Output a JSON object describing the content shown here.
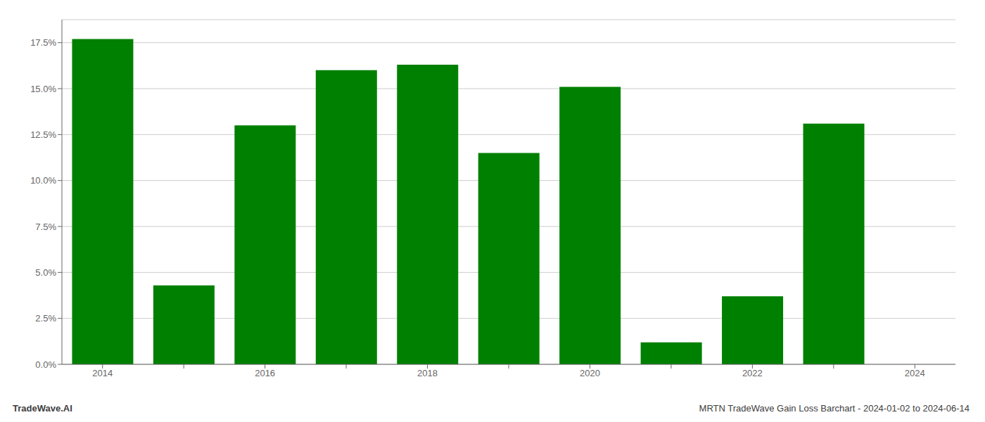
{
  "chart_data": {
    "type": "bar",
    "categories": [
      "2014",
      null,
      "2016",
      null,
      "2018",
      null,
      "2020",
      null,
      "2022",
      null,
      "2024"
    ],
    "values": [
      0.177,
      0.043,
      0.13,
      0.16,
      0.163,
      0.115,
      0.151,
      0.012,
      0.037,
      0.131,
      0.0
    ],
    "color": "#008000",
    "ylim": [
      0,
      0.1875
    ],
    "yticks": [
      {
        "value": 0.0,
        "label": "0.0%"
      },
      {
        "value": 0.025,
        "label": "2.5%"
      },
      {
        "value": 0.05,
        "label": "5.0%"
      },
      {
        "value": 0.075,
        "label": "7.5%"
      },
      {
        "value": 0.1,
        "label": "10.0%"
      },
      {
        "value": 0.125,
        "label": "12.5%"
      },
      {
        "value": 0.15,
        "label": "15.0%"
      },
      {
        "value": 0.175,
        "label": "17.5%"
      }
    ],
    "grid": true,
    "annotations": [
      "TradeWave.AI",
      "MRTN TradeWave Gain Loss Barchart - 2024-01-02 to 2024-06-14"
    ]
  }
}
